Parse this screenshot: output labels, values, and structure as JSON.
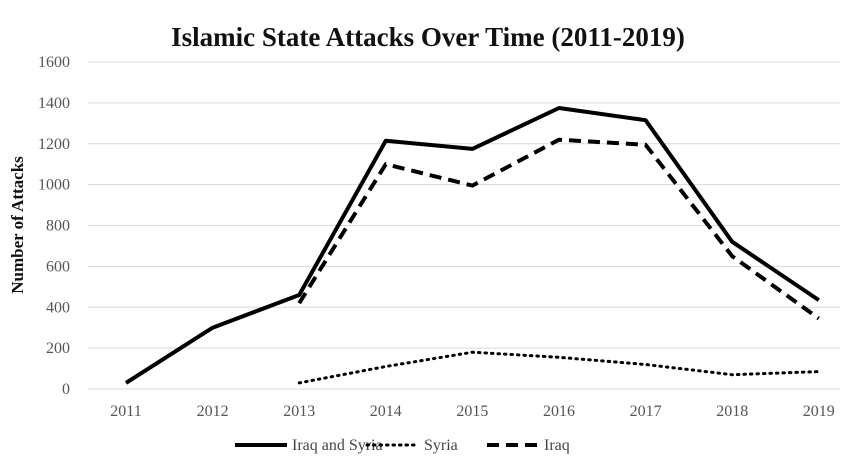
{
  "chart_data": {
    "type": "line",
    "title": "Islamic State Attacks Over Time (2011-2019)",
    "xlabel": "",
    "ylabel": "Number of Attacks",
    "categories": [
      "2011",
      "2012",
      "2013",
      "2014",
      "2015",
      "2016",
      "2017",
      "2018",
      "2019"
    ],
    "ylim": [
      0,
      1600
    ],
    "yticks": [
      0,
      200,
      400,
      600,
      800,
      1000,
      1200,
      1400,
      1600
    ],
    "grid": true,
    "legend_position": "bottom",
    "series": [
      {
        "name": "Iraq and Syria",
        "style": "solid",
        "color": "#000000",
        "values": [
          30,
          300,
          460,
          1215,
          1175,
          1375,
          1315,
          720,
          435
        ]
      },
      {
        "name": "Syria",
        "style": "dotted",
        "color": "#000000",
        "values": [
          null,
          null,
          30,
          110,
          180,
          155,
          120,
          70,
          85
        ]
      },
      {
        "name": "Iraq",
        "style": "dashed",
        "color": "#000000",
        "values": [
          null,
          null,
          420,
          1100,
          995,
          1220,
          1195,
          650,
          345
        ]
      }
    ]
  }
}
